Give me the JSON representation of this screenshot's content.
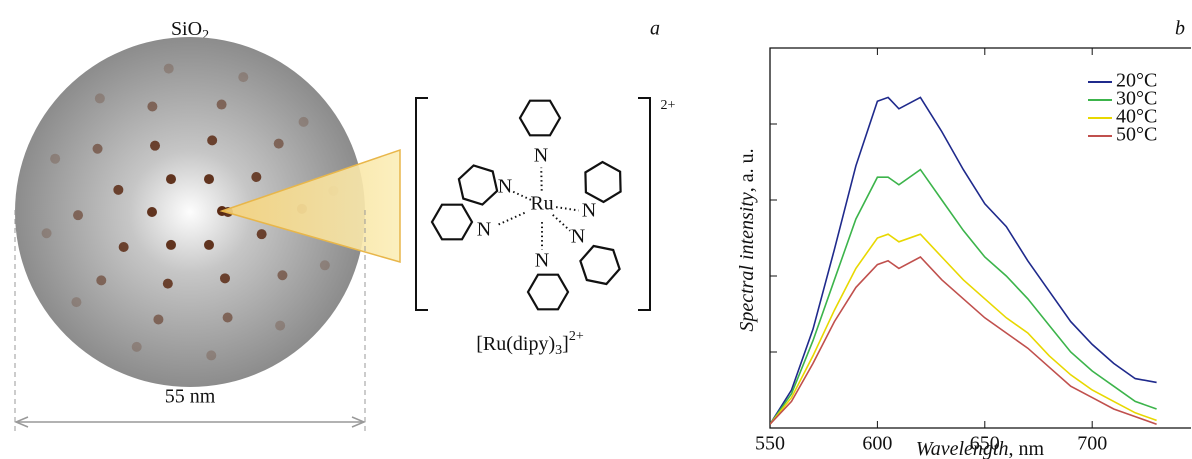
{
  "panel_a": {
    "panel_label": "a",
    "shell": "SiO",
    "shell_sub": "2",
    "size": "55 nm",
    "charge": "2+",
    "metal": "Ru",
    "atoms": [
      "N",
      "N",
      "N",
      "N",
      "N",
      "N"
    ],
    "formula": {
      "main": "[Ru(dipy)",
      "sub": "3",
      "close": "]",
      "sup": "2+"
    }
  },
  "chart_data": {
    "type": "line",
    "panel_label": "b",
    "xlabel": "Wavelength",
    "xlabel_unit": ", nm",
    "ylabel": "Spectral intensity",
    "ylabel_unit": ", a. u.",
    "x": [
      550,
      560,
      570,
      580,
      590,
      600,
      605,
      610,
      620,
      630,
      640,
      650,
      660,
      670,
      680,
      690,
      700,
      710,
      720,
      730
    ],
    "series": [
      {
        "name": "20°C",
        "color": "#1f2a8c",
        "values": [
          0.01,
          0.1,
          0.26,
          0.47,
          0.69,
          0.86,
          0.87,
          0.84,
          0.87,
          0.78,
          0.68,
          0.59,
          0.53,
          0.44,
          0.36,
          0.28,
          0.22,
          0.17,
          0.13,
          0.12
        ]
      },
      {
        "name": "30°C",
        "color": "#3cb44b",
        "values": [
          0.01,
          0.09,
          0.23,
          0.39,
          0.55,
          0.66,
          0.66,
          0.64,
          0.68,
          0.6,
          0.52,
          0.45,
          0.4,
          0.34,
          0.27,
          0.2,
          0.15,
          0.11,
          0.07,
          0.05
        ]
      },
      {
        "name": "40°C",
        "color": "#e8d800",
        "values": [
          0.01,
          0.08,
          0.19,
          0.31,
          0.42,
          0.5,
          0.51,
          0.49,
          0.51,
          0.45,
          0.39,
          0.34,
          0.29,
          0.25,
          0.19,
          0.14,
          0.1,
          0.07,
          0.04,
          0.02
        ]
      },
      {
        "name": "50°C",
        "color": "#c0504d",
        "values": [
          0.01,
          0.07,
          0.17,
          0.28,
          0.37,
          0.43,
          0.44,
          0.42,
          0.45,
          0.39,
          0.34,
          0.29,
          0.25,
          0.21,
          0.16,
          0.11,
          0.08,
          0.05,
          0.03,
          0.01
        ]
      }
    ],
    "xlim": [
      550,
      746
    ],
    "ylim": [
      0,
      1
    ],
    "xticks": [
      550,
      600,
      650,
      700
    ],
    "yticks": [
      0.2,
      0.4,
      0.6,
      0.8
    ]
  }
}
